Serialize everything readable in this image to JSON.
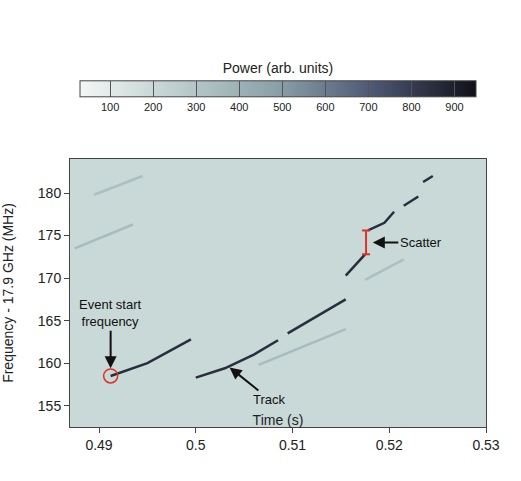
{
  "chart_data": {
    "type": "line",
    "x_label": "Time (s)",
    "y_label": "Frequency - 17.9 GHz (MHz)",
    "xlim": [
      0.487,
      0.53
    ],
    "xticks": [
      0.49,
      0.5,
      0.51,
      0.52,
      0.53
    ],
    "ylim": [
      152.5,
      184
    ],
    "yticks": [
      155,
      160,
      165,
      170,
      175,
      180
    ],
    "colorbar": {
      "title": "Power (arb. units)",
      "range": [
        30,
        950
      ],
      "ticks": [
        100,
        200,
        300,
        400,
        500,
        600,
        700,
        800,
        900
      ]
    },
    "background_cells": [
      [
        200
      ]
    ],
    "series": [
      {
        "power": 850,
        "x": [
          0.4912,
          0.495,
          0.4995
        ],
        "y": [
          158.5,
          160.0,
          162.8
        ]
      },
      {
        "power": 850,
        "x": [
          0.5,
          0.503,
          0.506,
          0.5085
        ],
        "y": [
          158.3,
          159.4,
          161.0,
          162.7
        ]
      },
      {
        "power": 850,
        "x": [
          0.5095,
          0.5125,
          0.5155
        ],
        "y": [
          163.5,
          165.5,
          167.5
        ]
      },
      {
        "power": 850,
        "x": [
          0.5155,
          0.5175
        ],
        "y": [
          170.3,
          172.8
        ]
      },
      {
        "power": 850,
        "x": [
          0.5178,
          0.5195,
          0.5205
        ],
        "y": [
          175.6,
          176.5,
          177.8
        ]
      },
      {
        "power": 850,
        "x": [
          0.5215,
          0.523
        ],
        "y": [
          178.5,
          179.6
        ]
      },
      {
        "power": 850,
        "x": [
          0.5235,
          0.5245
        ],
        "y": [
          181.3,
          182.0
        ]
      },
      {
        "power": 350,
        "x": [
          0.4875,
          0.4935
        ],
        "y": [
          173.5,
          176.3
        ]
      },
      {
        "power": 330,
        "x": [
          0.4895,
          0.4945
        ],
        "y": [
          179.8,
          182.0
        ]
      },
      {
        "power": 350,
        "x": [
          0.5065,
          0.5155
        ],
        "y": [
          159.8,
          164.0
        ]
      },
      {
        "power": 330,
        "x": [
          0.5175,
          0.5215
        ],
        "y": [
          169.8,
          172.2
        ]
      }
    ],
    "annotations": [
      {
        "text": "Event start frequency",
        "x": 0.4912,
        "y": 159.4
      },
      {
        "text": "Track",
        "x": 0.5035,
        "y": 159.5
      },
      {
        "text": "Scatter",
        "x": 0.5183,
        "y": 174.2
      }
    ],
    "start_marker": {
      "x": 0.4912,
      "y": 158.5
    },
    "scatter_bracket": {
      "x": 0.5176,
      "y": [
        172.8,
        175.6
      ]
    }
  }
}
